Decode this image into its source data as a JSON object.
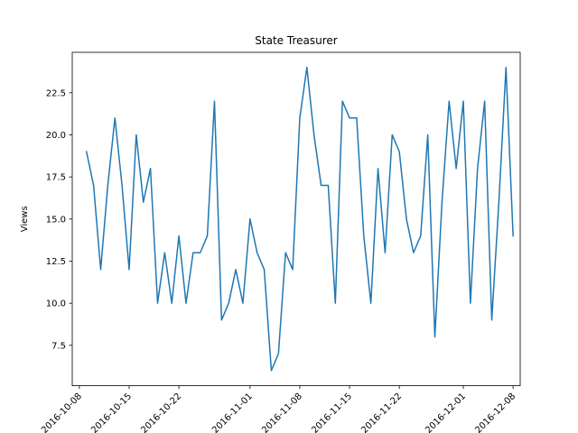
{
  "chart_data": {
    "type": "line",
    "title": "State Treasurer",
    "xlabel": "",
    "ylabel": "Views",
    "color": "#1f77b4",
    "grid": false,
    "x_tick_labels": [
      "2016-10-08",
      "2016-10-15",
      "2016-10-22",
      "2016-11-01",
      "2016-11-08",
      "2016-11-15",
      "2016-11-22",
      "2016-12-01",
      "2016-12-08"
    ],
    "y_ticks": [
      7.5,
      10.0,
      12.5,
      15.0,
      17.5,
      20.0,
      22.5
    ],
    "y_tick_labels": [
      "7.5",
      "10.0",
      "12.5",
      "15.0",
      "17.5",
      "20.0",
      "22.5"
    ],
    "ylim": [
      5.1,
      24.9
    ],
    "xlim": [
      "2016-10-07",
      "2016-12-09"
    ],
    "series": [
      {
        "x": [
          "2016-10-09",
          "2016-10-10",
          "2016-10-11",
          "2016-10-12",
          "2016-10-13",
          "2016-10-14",
          "2016-10-15",
          "2016-10-16",
          "2016-10-17",
          "2016-10-18",
          "2016-10-19",
          "2016-10-20",
          "2016-10-21",
          "2016-10-22",
          "2016-10-23",
          "2016-10-24",
          "2016-10-25",
          "2016-10-26",
          "2016-10-27",
          "2016-10-28",
          "2016-10-29",
          "2016-10-30",
          "2016-10-31",
          "2016-11-01",
          "2016-11-02",
          "2016-11-03",
          "2016-11-04",
          "2016-11-05",
          "2016-11-06",
          "2016-11-07",
          "2016-11-08",
          "2016-11-09",
          "2016-11-10",
          "2016-11-11",
          "2016-11-12",
          "2016-11-13",
          "2016-11-14",
          "2016-11-15",
          "2016-11-16",
          "2016-11-17",
          "2016-11-18",
          "2016-11-19",
          "2016-11-20",
          "2016-11-21",
          "2016-11-22",
          "2016-11-23",
          "2016-11-24",
          "2016-11-25",
          "2016-11-26",
          "2016-11-27",
          "2016-11-28",
          "2016-11-29",
          "2016-11-30",
          "2016-12-01",
          "2016-12-02",
          "2016-12-03",
          "2016-12-04",
          "2016-12-05",
          "2016-12-06",
          "2016-12-07",
          "2016-12-08"
        ],
        "values": [
          19,
          17,
          12,
          17,
          21,
          17,
          12,
          20,
          16,
          18,
          10,
          13,
          10,
          14,
          10,
          13,
          13,
          14,
          22,
          9,
          10,
          12,
          10,
          15,
          13,
          12,
          6,
          7,
          13,
          12,
          21,
          24,
          20,
          17,
          17,
          10,
          22,
          21,
          21,
          14,
          10,
          18,
          13,
          20,
          19,
          15,
          13,
          14,
          20,
          8,
          16,
          22,
          18,
          22,
          10,
          18,
          22,
          9,
          16,
          24,
          14
        ]
      }
    ]
  }
}
